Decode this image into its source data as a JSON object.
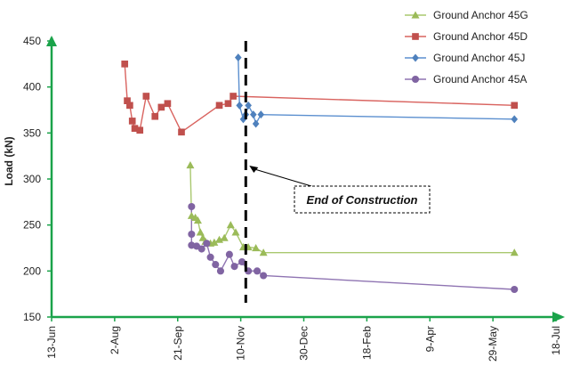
{
  "chart_data": {
    "type": "line",
    "ylabel": "Load (kN)",
    "ylim": [
      150,
      450
    ],
    "yticks": [
      150,
      200,
      250,
      300,
      350,
      400,
      450
    ],
    "xlim": [
      "2009-06-13",
      "2010-07-18"
    ],
    "xticks": [
      {
        "date": "2009-06-13",
        "label": "13-Jun"
      },
      {
        "date": "2009-08-02",
        "label": "2-Aug"
      },
      {
        "date": "2009-09-21",
        "label": "21-Sep"
      },
      {
        "date": "2009-11-10",
        "label": "10-Nov"
      },
      {
        "date": "2009-12-30",
        "label": "30-Dec"
      },
      {
        "date": "2010-02-18",
        "label": "18-Feb"
      },
      {
        "date": "2010-04-09",
        "label": "9-Apr"
      },
      {
        "date": "2010-05-29",
        "label": "29-May"
      },
      {
        "date": "2010-07-18",
        "label": "18-Jul"
      }
    ],
    "axis_color": "#1aa34a",
    "legend_position": "top-right",
    "series": [
      {
        "name": "Ground Anchor  45G",
        "color": "#9bbb59",
        "line_color": "#a9c86f",
        "marker": "triangle",
        "points": [
          [
            "2009-10-01",
            315
          ],
          [
            "2009-10-02",
            260
          ],
          [
            "2009-10-05",
            258
          ],
          [
            "2009-10-07",
            255
          ],
          [
            "2009-10-09",
            242
          ],
          [
            "2009-10-11",
            236
          ],
          [
            "2009-10-13",
            232
          ],
          [
            "2009-10-17",
            230
          ],
          [
            "2009-10-20",
            231
          ],
          [
            "2009-10-24",
            234
          ],
          [
            "2009-10-28",
            236
          ],
          [
            "2009-11-02",
            250
          ],
          [
            "2009-11-06",
            242
          ],
          [
            "2009-11-12",
            226
          ],
          [
            "2009-11-16",
            226
          ],
          [
            "2009-11-22",
            225
          ],
          [
            "2009-11-28",
            220
          ],
          [
            "2010-06-15",
            220
          ]
        ]
      },
      {
        "name": "Ground Anchor  45D",
        "color": "#c0504d",
        "line_color": "#d9635f",
        "marker": "square",
        "points": [
          [
            "2009-08-10",
            425
          ],
          [
            "2009-08-12",
            385
          ],
          [
            "2009-08-14",
            380
          ],
          [
            "2009-08-16",
            363
          ],
          [
            "2009-08-18",
            355
          ],
          [
            "2009-08-22",
            353
          ],
          [
            "2009-08-27",
            390
          ],
          [
            "2009-09-03",
            368
          ],
          [
            "2009-09-08",
            378
          ],
          [
            "2009-09-13",
            382
          ],
          [
            "2009-09-24",
            351
          ],
          [
            "2009-10-24",
            380
          ],
          [
            "2009-10-31",
            382
          ],
          [
            "2009-11-04",
            390
          ],
          [
            "2010-06-15",
            380
          ]
        ]
      },
      {
        "name": "Ground Anchor 45J",
        "color": "#4f81bd",
        "line_color": "#5b8fcf",
        "marker": "diamond",
        "points": [
          [
            "2009-11-08",
            432
          ],
          [
            "2009-11-09",
            380
          ],
          [
            "2009-11-12",
            365
          ],
          [
            "2009-11-14",
            370
          ],
          [
            "2009-11-16",
            380
          ],
          [
            "2009-11-20",
            370
          ],
          [
            "2009-11-22",
            360
          ],
          [
            "2009-11-26",
            370
          ],
          [
            "2010-06-15",
            365
          ]
        ]
      },
      {
        "name": "Ground Anchor  45A",
        "color": "#8064a2",
        "line_color": "#8f74b2",
        "marker": "circle",
        "points": [
          [
            "2009-10-02",
            270
          ],
          [
            "2009-10-02",
            240
          ],
          [
            "2009-10-02",
            228
          ],
          [
            "2009-10-06",
            227
          ],
          [
            "2009-10-10",
            224
          ],
          [
            "2009-10-14",
            230
          ],
          [
            "2009-10-17",
            215
          ],
          [
            "2009-10-21",
            207
          ],
          [
            "2009-10-25",
            200
          ],
          [
            "2009-11-01",
            218
          ],
          [
            "2009-11-05",
            205
          ],
          [
            "2009-11-11",
            210
          ],
          [
            "2009-11-16",
            200
          ],
          [
            "2009-11-23",
            200
          ],
          [
            "2009-11-28",
            195
          ],
          [
            "2010-06-15",
            180
          ]
        ]
      }
    ],
    "end_of_construction": {
      "date": "2009-11-14",
      "label": "End of Construction"
    }
  }
}
